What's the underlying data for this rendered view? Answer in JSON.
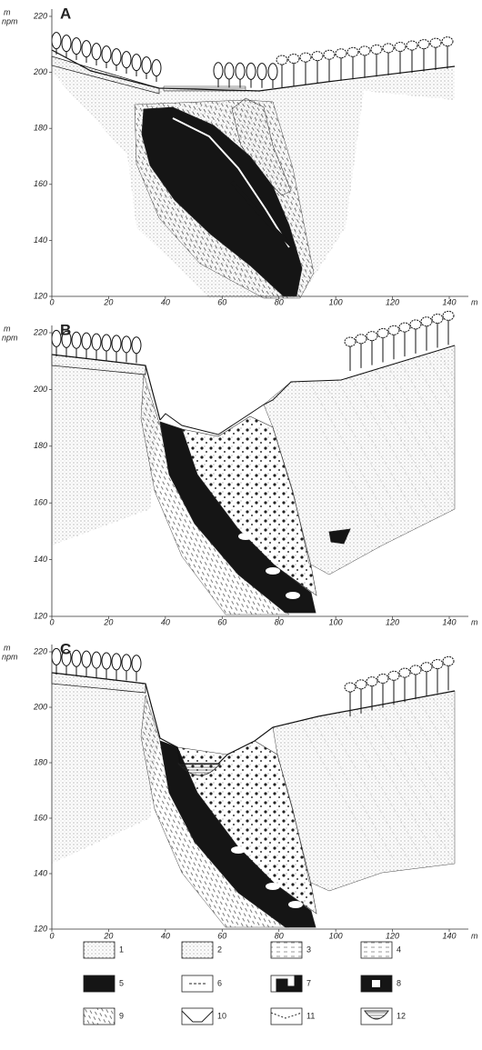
{
  "panels": [
    {
      "label": "A",
      "y_unit": "m",
      "y_unit_sub": "npm",
      "x_unit": "m",
      "yticks": [
        220,
        200,
        180,
        160,
        140,
        120
      ],
      "xticks": [
        0,
        20,
        40,
        60,
        80,
        100,
        120,
        140
      ]
    },
    {
      "label": "B",
      "y_unit": "m",
      "y_unit_sub": "npm",
      "x_unit": "m",
      "yticks": [
        220,
        200,
        180,
        160,
        140,
        120
      ],
      "xticks": [
        0,
        20,
        40,
        60,
        80,
        100,
        120,
        140
      ]
    },
    {
      "label": "C",
      "y_unit": "m",
      "y_unit_sub": "npm",
      "x_unit": "m",
      "yticks": [
        220,
        200,
        180,
        160,
        140,
        120
      ],
      "xticks": [
        0,
        20,
        40,
        60,
        80,
        100,
        120,
        140
      ]
    }
  ],
  "legend": {
    "items": [
      1,
      2,
      3,
      4,
      5,
      6,
      7,
      8,
      9,
      10,
      11,
      12
    ]
  }
}
